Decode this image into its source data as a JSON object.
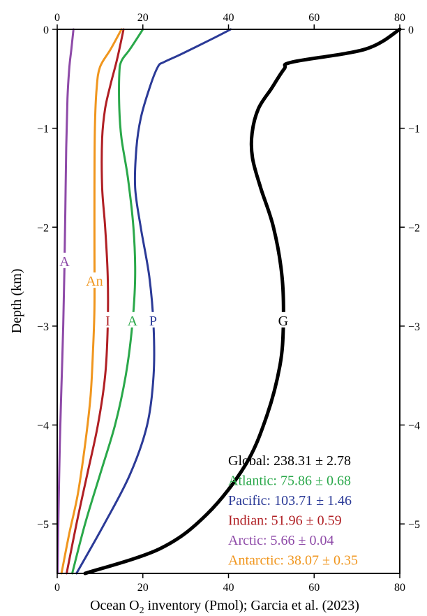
{
  "chart_data": {
    "type": "line",
    "xlabel": "Ocean O",
    "xlabel_sub": "2",
    "xlabel_rest": " inventory (Pmol); Garcia et al. (2023)",
    "ylabel": "Depth (km)",
    "xlim": [
      0,
      80
    ],
    "ylim": [
      -5.5,
      0
    ],
    "x_ticks": [
      "0",
      "20",
      "40",
      "60",
      "80"
    ],
    "y_ticks": [
      "0",
      "−1",
      "−2",
      "−3",
      "−4",
      "−5"
    ],
    "y_tick_values": [
      0,
      -1,
      -2,
      -3,
      -4,
      -5
    ],
    "x_tick_values": [
      0,
      20,
      40,
      60,
      80
    ],
    "grid": false,
    "legend_position": "bottom-right",
    "series": [
      {
        "name": "Global: 238.31 ± 2.78",
        "label": "G",
        "color": "#000000",
        "width": 5,
        "label_depth": -2.95,
        "points": [
          [
            80,
            0
          ],
          [
            72,
            -0.2
          ],
          [
            55,
            -0.33
          ],
          [
            53,
            -0.4
          ],
          [
            50,
            -0.6
          ],
          [
            47,
            -0.8
          ],
          [
            45.5,
            -1.05
          ],
          [
            45.6,
            -1.3
          ],
          [
            47.5,
            -1.6
          ],
          [
            50.5,
            -2.0
          ],
          [
            52.5,
            -2.5
          ],
          [
            52.8,
            -3.0
          ],
          [
            52,
            -3.4
          ],
          [
            49,
            -3.9
          ],
          [
            44,
            -4.4
          ],
          [
            35,
            -4.9
          ],
          [
            24,
            -5.25
          ],
          [
            6.5,
            -5.5
          ]
        ]
      },
      {
        "name": "Atlantic: 75.86 ± 0.68",
        "label": "A",
        "color": "#2aa84a",
        "width": 3,
        "label_depth": -2.95,
        "points": [
          [
            20,
            0
          ],
          [
            17,
            -0.2
          ],
          [
            15,
            -0.32
          ],
          [
            14.5,
            -0.45
          ],
          [
            14.5,
            -0.8
          ],
          [
            15,
            -1.1
          ],
          [
            16.5,
            -1.5
          ],
          [
            17.8,
            -2.0
          ],
          [
            18.2,
            -2.5
          ],
          [
            17.5,
            -3.0
          ],
          [
            16,
            -3.5
          ],
          [
            13.5,
            -4.0
          ],
          [
            10,
            -4.5
          ],
          [
            6.5,
            -5.0
          ],
          [
            3.5,
            -5.5
          ]
        ]
      },
      {
        "name": "Pacific: 103.71 ± 1.46",
        "label": "P",
        "color": "#2b3a97",
        "width": 3,
        "label_depth": -2.95,
        "points": [
          [
            40.5,
            0
          ],
          [
            36,
            -0.1
          ],
          [
            29,
            -0.25
          ],
          [
            25,
            -0.33
          ],
          [
            23.5,
            -0.38
          ],
          [
            21.5,
            -0.6
          ],
          [
            19.5,
            -0.9
          ],
          [
            18.5,
            -1.2
          ],
          [
            18.2,
            -1.6
          ],
          [
            19.5,
            -2.0
          ],
          [
            21.5,
            -2.5
          ],
          [
            22.5,
            -3.0
          ],
          [
            22.5,
            -3.5
          ],
          [
            21,
            -4.0
          ],
          [
            17,
            -4.5
          ],
          [
            11,
            -5.0
          ],
          [
            4.5,
            -5.5
          ]
        ]
      },
      {
        "name": "Indian: 51.96 ± 0.59",
        "label": "I",
        "color": "#b01f24",
        "width": 3,
        "label_depth": -2.95,
        "points": [
          [
            15.5,
            0
          ],
          [
            14,
            -0.3
          ],
          [
            12.5,
            -0.55
          ],
          [
            11.2,
            -0.8
          ],
          [
            10.5,
            -1.1
          ],
          [
            10.5,
            -1.6
          ],
          [
            11.2,
            -2.0
          ],
          [
            11.8,
            -2.5
          ],
          [
            11.8,
            -3.0
          ],
          [
            11.2,
            -3.5
          ],
          [
            9.5,
            -4.0
          ],
          [
            7,
            -4.5
          ],
          [
            4.5,
            -5.0
          ],
          [
            2.2,
            -5.5
          ]
        ]
      },
      {
        "name": "Arctic: 5.66 ± 0.04",
        "label": "A",
        "color": "#8e4aa8",
        "width": 3,
        "label_depth": -2.35,
        "points": [
          [
            3.8,
            0
          ],
          [
            3.3,
            -0.2
          ],
          [
            2.8,
            -0.4
          ],
          [
            2.4,
            -0.7
          ],
          [
            2.1,
            -1.2
          ],
          [
            1.9,
            -1.8
          ],
          [
            1.7,
            -2.4
          ],
          [
            1.4,
            -3.0
          ],
          [
            1.0,
            -3.6
          ],
          [
            0.6,
            -4.2
          ],
          [
            0.3,
            -4.9
          ],
          [
            0.1,
            -5.5
          ]
        ]
      },
      {
        "name": "Antarctic: 38.07 ± 0.35",
        "label": "An",
        "color": "#f0961e",
        "width": 3,
        "label_depth": -2.55,
        "points": [
          [
            15,
            0
          ],
          [
            12.5,
            -0.2
          ],
          [
            10,
            -0.38
          ],
          [
            9.2,
            -0.6
          ],
          [
            8.8,
            -1.0
          ],
          [
            8.7,
            -1.6
          ],
          [
            8.7,
            -2.2
          ],
          [
            8.7,
            -2.8
          ],
          [
            8.4,
            -3.2
          ],
          [
            7.8,
            -3.7
          ],
          [
            6.5,
            -4.2
          ],
          [
            4.8,
            -4.7
          ],
          [
            2.8,
            -5.1
          ],
          [
            1.0,
            -5.5
          ]
        ]
      }
    ]
  }
}
